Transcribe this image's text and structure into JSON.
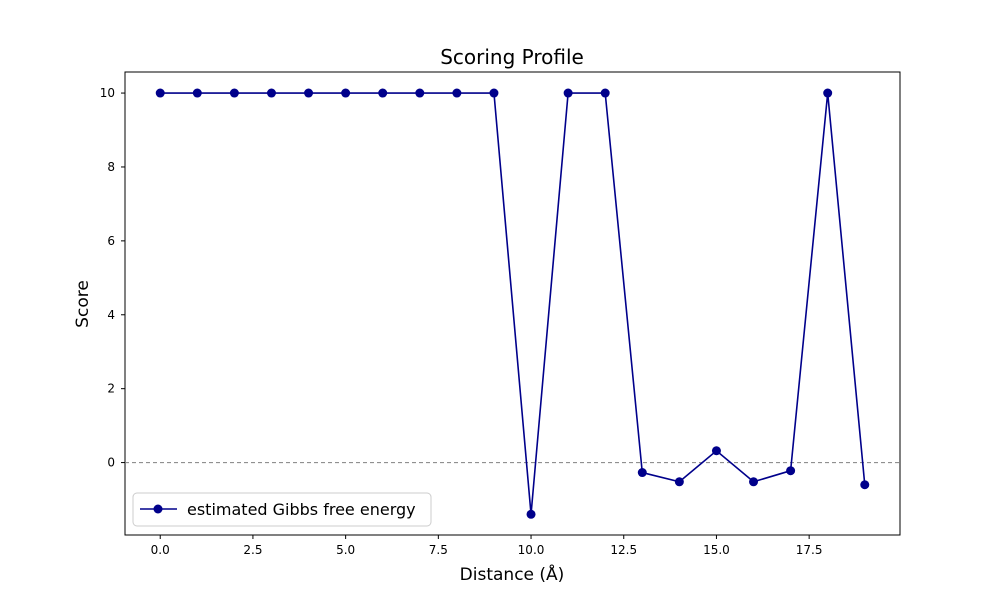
{
  "chart_data": {
    "type": "line",
    "title": "Scoring Profile",
    "xlabel": "Distance (Å)",
    "ylabel": "Score",
    "xlim": [
      -0.95,
      19.95
    ],
    "ylim": [
      -1.96,
      10.57
    ],
    "xticks": [
      0.0,
      2.5,
      5.0,
      7.5,
      10.0,
      12.5,
      15.0,
      17.5
    ],
    "xtick_labels": [
      "0.0",
      "2.5",
      "5.0",
      "7.5",
      "10.0",
      "12.5",
      "15.0",
      "17.5"
    ],
    "yticks": [
      0,
      2,
      4,
      6,
      8,
      10
    ],
    "ytick_labels": [
      "0",
      "2",
      "4",
      "6",
      "8",
      "10"
    ],
    "reference_line": {
      "y": 0,
      "style": "dashed",
      "color": "#808080"
    },
    "grid": false,
    "legend_position": "lower-left",
    "series": [
      {
        "name": "estimated Gibbs free energy",
        "color": "#00008B",
        "marker": "circle",
        "x": [
          0,
          1,
          2,
          3,
          4,
          5,
          6,
          7,
          8,
          9,
          10,
          11,
          12,
          13,
          14,
          15,
          16,
          17,
          18,
          19
        ],
        "y": [
          10,
          10,
          10,
          10,
          10,
          10,
          10,
          10,
          10,
          10,
          -1.4,
          10,
          10,
          -0.27,
          -0.52,
          0.32,
          -0.52,
          -0.22,
          10,
          -0.6
        ]
      }
    ]
  }
}
